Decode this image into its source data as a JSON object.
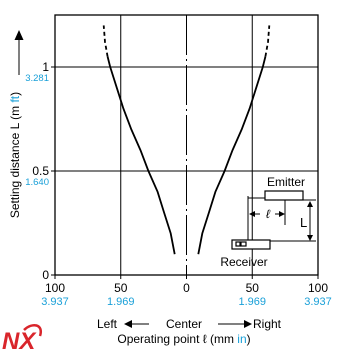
{
  "chart_data": {
    "type": "line",
    "title": "",
    "xlabel": "Operating point ℓ (mm",
    "xlabel_unit": "in",
    "xlabel_close": ")",
    "ylabel": "Setting distance L (m",
    "ylabel_unit": "ft",
    "ylabel_close": ")",
    "xlim": [
      -100,
      100
    ],
    "ylim": [
      0,
      1.25
    ],
    "x_ticks": [
      {
        "value": -100,
        "label": "100",
        "sub": "3.937"
      },
      {
        "value": -50,
        "label": "50",
        "sub": "1.969"
      },
      {
        "value": 0,
        "label": "0",
        "sub": ""
      },
      {
        "value": 50,
        "label": "50",
        "sub": "1.969"
      },
      {
        "value": 100,
        "label": "100",
        "sub": "3.937"
      }
    ],
    "y_ticks": [
      {
        "value": 0,
        "label": "0",
        "sub": ""
      },
      {
        "value": 0.5,
        "label": "0.5",
        "sub": "1.640"
      },
      {
        "value": 1,
        "label": "1",
        "sub": "3.281"
      }
    ],
    "direction_labels": {
      "left": "Left",
      "center": "Center",
      "right": "Right"
    },
    "grid": true,
    "series": [
      {
        "points": [
          [
            -9,
            0.1
          ],
          [
            -12,
            0.2
          ],
          [
            -17,
            0.3
          ],
          [
            -22,
            0.4
          ],
          [
            -29,
            0.5
          ],
          [
            -35,
            0.6
          ],
          [
            -42,
            0.7
          ],
          [
            -48,
            0.8
          ],
          [
            -53,
            0.9
          ],
          [
            -58,
            1.0
          ],
          [
            -60,
            1.05
          ]
        ],
        "dashed_points": [
          [
            -60,
            1.05
          ],
          [
            -62,
            1.12
          ],
          [
            -63,
            1.2
          ]
        ]
      },
      {
        "points": [
          [
            9,
            0.1
          ],
          [
            12,
            0.2
          ],
          [
            17,
            0.3
          ],
          [
            22,
            0.4
          ],
          [
            29,
            0.5
          ],
          [
            35,
            0.6
          ],
          [
            42,
            0.7
          ],
          [
            48,
            0.8
          ],
          [
            53,
            0.9
          ],
          [
            58,
            1.0
          ],
          [
            60,
            1.05
          ]
        ],
        "dashed_points": [
          [
            60,
            1.05
          ],
          [
            62,
            1.12
          ],
          [
            63,
            1.2
          ]
        ]
      }
    ],
    "inset": {
      "emitter_label": "Emitter",
      "receiver_label": "Receiver",
      "l_symbol": "ℓ",
      "distance_symbol": "L"
    },
    "logo_text": "NX"
  }
}
